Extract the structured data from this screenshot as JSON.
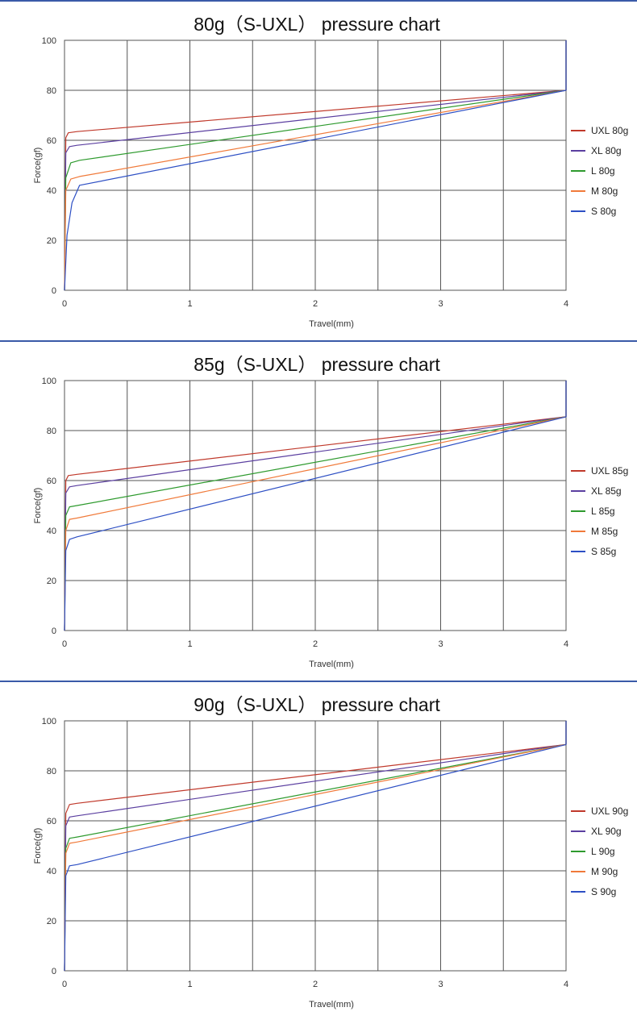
{
  "colors": {
    "separator": "#3a5aa8",
    "grid": "#555555",
    "axis": "#555555",
    "series": [
      "#c0392b",
      "#5b3fa0",
      "#2e9a2e",
      "#f07a3a",
      "#2d4fc4"
    ]
  },
  "chart_data": [
    {
      "type": "line",
      "title": "80g（S-UXL） pressure chart",
      "xlabel": "Travel(mm)",
      "ylabel": "Force(gf)",
      "xlim": [
        0,
        4
      ],
      "ylim": [
        0,
        100
      ],
      "xticks": [
        "0",
        "1",
        "2",
        "3",
        "4"
      ],
      "yticks": [
        "0",
        "20",
        "40",
        "60",
        "80",
        "100"
      ],
      "grid": true,
      "legend_position": "right",
      "series": [
        {
          "name": "UXL 80g",
          "color": "#c0392b",
          "x": [
            0,
            0.01,
            0.03,
            0.1,
            4,
            4
          ],
          "y": [
            0,
            61,
            63,
            63.5,
            80,
            100
          ]
        },
        {
          "name": "XL 80g",
          "color": "#5b3fa0",
          "x": [
            0,
            0.01,
            0.04,
            0.1,
            4,
            4
          ],
          "y": [
            0,
            55,
            57.5,
            58,
            80,
            100
          ]
        },
        {
          "name": "L 80g",
          "color": "#2e9a2e",
          "x": [
            0,
            0.01,
            0.05,
            0.12,
            4,
            4
          ],
          "y": [
            0,
            45,
            51,
            52,
            80,
            100
          ]
        },
        {
          "name": "M 80g",
          "color": "#f07a3a",
          "x": [
            0,
            0.01,
            0.05,
            0.12,
            4,
            4
          ],
          "y": [
            0,
            40,
            44.5,
            45.5,
            80,
            100
          ]
        },
        {
          "name": "S 80g",
          "color": "#2d4fc4",
          "x": [
            0,
            0.02,
            0.06,
            0.12,
            4,
            4
          ],
          "y": [
            0,
            22,
            35,
            42,
            80,
            100
          ]
        }
      ]
    },
    {
      "type": "line",
      "title": "85g（S-UXL） pressure chart",
      "xlabel": "Travel(mm)",
      "ylabel": "Force(gf)",
      "xlim": [
        0,
        4
      ],
      "ylim": [
        0,
        100
      ],
      "xticks": [
        "0",
        "1",
        "2",
        "3",
        "4"
      ],
      "yticks": [
        "0",
        "20",
        "40",
        "60",
        "80",
        "100"
      ],
      "grid": true,
      "legend_position": "right",
      "series": [
        {
          "name": "UXL 85g",
          "color": "#c0392b",
          "x": [
            0,
            0.01,
            0.03,
            0.1,
            4,
            4
          ],
          "y": [
            0,
            60,
            62,
            62.5,
            85.5,
            100
          ]
        },
        {
          "name": "XL 85g",
          "color": "#5b3fa0",
          "x": [
            0,
            0.01,
            0.04,
            0.1,
            4,
            4
          ],
          "y": [
            0,
            55,
            57.5,
            58,
            85.5,
            100
          ]
        },
        {
          "name": "L 85g",
          "color": "#2e9a2e",
          "x": [
            0,
            0.01,
            0.04,
            0.1,
            4,
            4
          ],
          "y": [
            0,
            46,
            49.5,
            50,
            85.5,
            100
          ]
        },
        {
          "name": "M 85g",
          "color": "#f07a3a",
          "x": [
            0,
            0.01,
            0.04,
            0.1,
            4,
            4
          ],
          "y": [
            0,
            40,
            44.5,
            45,
            85.5,
            100
          ]
        },
        {
          "name": "S 85g",
          "color": "#2d4fc4",
          "x": [
            0,
            0.01,
            0.04,
            0.1,
            4,
            4
          ],
          "y": [
            0,
            32,
            36.5,
            37.5,
            85.5,
            100
          ]
        }
      ]
    },
    {
      "type": "line",
      "title": "90g（S-UXL） pressure chart",
      "xlabel": "Travel(mm)",
      "ylabel": "Force(gf)",
      "xlim": [
        0,
        4
      ],
      "ylim": [
        0,
        100
      ],
      "xticks": [
        "0",
        "1",
        "2",
        "3",
        "4"
      ],
      "yticks": [
        "0",
        "20",
        "40",
        "60",
        "80",
        "100"
      ],
      "grid": true,
      "legend_position": "right",
      "series": [
        {
          "name": "UXL 90g",
          "color": "#c0392b",
          "x": [
            0,
            0.01,
            0.04,
            0.1,
            4,
            4
          ],
          "y": [
            0,
            63,
            66.5,
            67,
            90.5,
            100
          ]
        },
        {
          "name": "XL 90g",
          "color": "#5b3fa0",
          "x": [
            0,
            0.01,
            0.04,
            0.1,
            4,
            4
          ],
          "y": [
            0,
            58,
            61.5,
            62,
            90.5,
            100
          ]
        },
        {
          "name": "L 90g",
          "color": "#2e9a2e",
          "x": [
            0,
            0.01,
            0.04,
            0.1,
            4,
            4
          ],
          "y": [
            0,
            49,
            53,
            53.5,
            90.5,
            100
          ]
        },
        {
          "name": "M 90g",
          "color": "#f07a3a",
          "x": [
            0,
            0.01,
            0.04,
            0.1,
            4,
            4
          ],
          "y": [
            0,
            47,
            51,
            51.5,
            90.5,
            100
          ]
        },
        {
          "name": "S 90g",
          "color": "#2d4fc4",
          "x": [
            0,
            0.01,
            0.04,
            0.1,
            4,
            4
          ],
          "y": [
            0,
            38,
            42,
            42.5,
            90.5,
            100
          ]
        }
      ]
    }
  ]
}
